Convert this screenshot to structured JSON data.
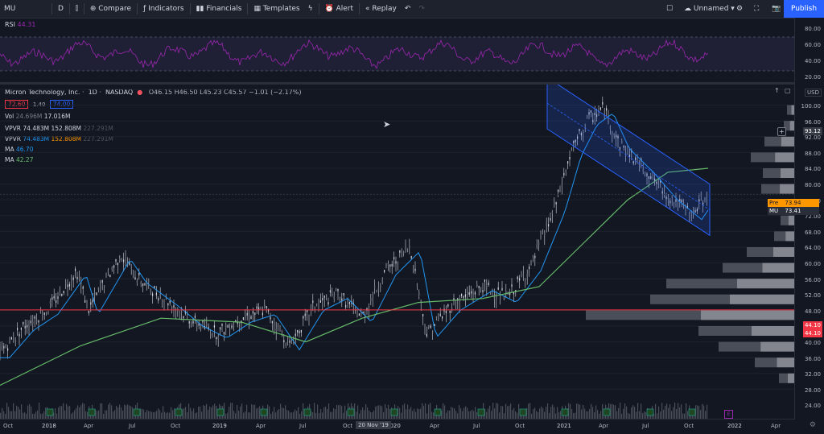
{
  "toolbar": {
    "symbol": "MU",
    "interval": "D",
    "compare": "Compare",
    "indicators": "Indicators",
    "financials": "Financials",
    "templates": "Templates",
    "alert": "Alert",
    "replay": "Replay",
    "layout_name": "Unnamed",
    "publish": "Publish"
  },
  "rsi": {
    "label": "RSI",
    "value": "44.31",
    "ticks": [
      "80.00",
      "60.00",
      "40.00",
      "20.00"
    ]
  },
  "header": {
    "title": "Micron Technology, Inc.",
    "interval": "1D",
    "exchange": "NASDAQ",
    "ohlc": "O46.15 H46.50 L45.23 C45.57 −1.01 (−2.17%)",
    "sell": "72.60",
    "spread": "1.40",
    "buy": "74.00"
  },
  "legends": [
    {
      "name": "Vol",
      "v1": "24.696M",
      "v2": "17.016M",
      "v3": ""
    },
    {
      "name": "VPVR",
      "v1": "74.483M",
      "v2": "152.808M",
      "v3": "227.291M"
    },
    {
      "name": "VPVR",
      "v1": "74.483M",
      "v2": "152.808M",
      "v3": "227.291M"
    },
    {
      "name": "MA",
      "v1": "46.70",
      "v2": "",
      "v3": ""
    },
    {
      "name": "MA",
      "v1": "42.27",
      "v2": "",
      "v3": ""
    }
  ],
  "price_axis": {
    "currency": "USD",
    "ticks": [
      "100.00",
      "96.00",
      "92.00",
      "88.00",
      "84.00",
      "80.00",
      "76.00",
      "72.00",
      "68.00",
      "64.00",
      "60.00",
      "56.00",
      "52.00",
      "48.00",
      "44.00",
      "40.00",
      "36.00",
      "32.00",
      "28.00",
      "24.00"
    ],
    "crosshair_price": "93.12",
    "pre_label": "Pre",
    "pre_value": "73.94",
    "mu_label": "MU",
    "mu_value": "73.41",
    "red_line_1": "44.10",
    "red_line_2": "44.10"
  },
  "time_axis": {
    "ticks": [
      "Oct",
      "2018",
      "Apr",
      "Jul",
      "Oct",
      "2019",
      "Apr",
      "Jul",
      "Oct",
      "2020",
      "Apr",
      "Jul",
      "Oct",
      "2021",
      "Apr",
      "Jul",
      "Oct",
      "2022",
      "Apr"
    ],
    "cursor_date": "20 Nov '19"
  },
  "colors": {
    "rsi": "#9c27b0",
    "ma_fast": "#2196f3",
    "ma_slow": "#66bb6a",
    "channel": "#2962ff",
    "red_line": "#f23645"
  }
}
